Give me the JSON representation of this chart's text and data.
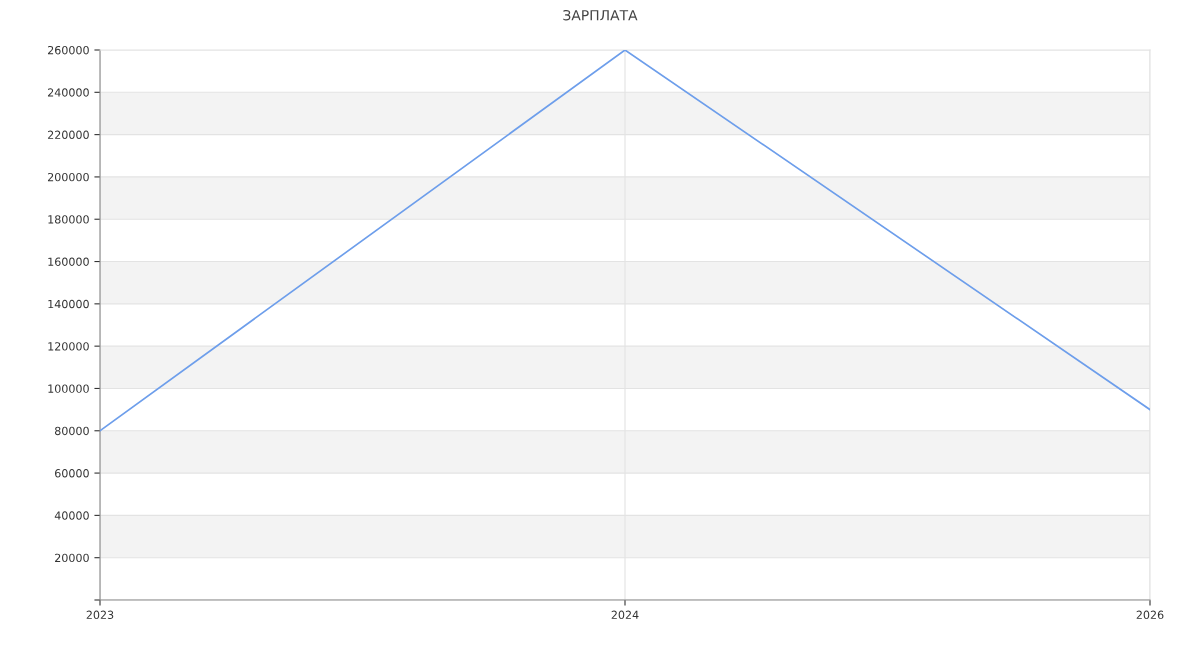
{
  "chart_data": {
    "type": "line",
    "title": "ЗАРПЛАТА",
    "categories": [
      "2023",
      "2024",
      "2026"
    ],
    "series": [
      {
        "color": "#6d9eeb",
        "values": [
          80000,
          260000,
          90000
        ]
      }
    ],
    "ylim": [
      0,
      260000
    ],
    "yticks": [
      {
        "value": 0,
        "label": null
      },
      20000,
      40000,
      60000,
      80000,
      100000,
      120000,
      140000,
      160000,
      180000,
      200000,
      220000,
      240000,
      260000
    ],
    "grid": true,
    "marker": "none",
    "line_style": "solid",
    "legend": false
  }
}
